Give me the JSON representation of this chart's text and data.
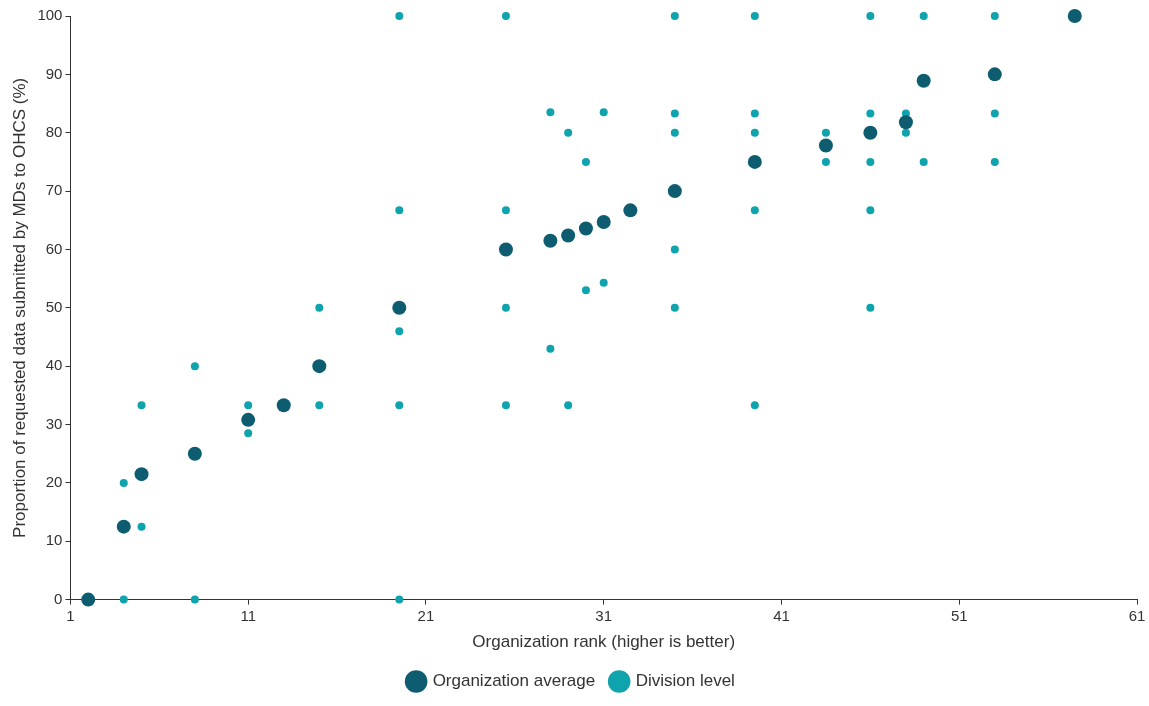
{
  "chart_data": {
    "type": "scatter",
    "xlabel": "Organization rank (higher is better)",
    "ylabel": "Proportion of requested data submitted by MDs to OHCS (%)",
    "xlim": [
      1,
      61
    ],
    "xticks": [
      1,
      11,
      21,
      31,
      41,
      51,
      61
    ],
    "ylim": [
      0,
      100
    ],
    "yticks": [
      0,
      10,
      20,
      30,
      40,
      50,
      60,
      70,
      80,
      90,
      100
    ],
    "grid": false,
    "legend": "bottom",
    "marker": "circle",
    "series": [
      {
        "name": "Organization average",
        "color": "#0d5c70",
        "x": [
          2,
          4,
          5,
          8,
          11,
          13,
          15,
          19.5,
          25.5,
          28,
          29,
          30,
          31,
          32.5,
          35,
          39.5,
          43.5,
          46,
          48,
          49,
          53,
          57.5
        ],
        "values": [
          0,
          12.5,
          21.5,
          25,
          30.8,
          33.3,
          40,
          50,
          60,
          61.5,
          62.4,
          63.6,
          64.7,
          66.7,
          70,
          75,
          77.8,
          80,
          81.8,
          88.9,
          90,
          100
        ]
      },
      {
        "name": "Division level",
        "color": "#0fa3ae",
        "x": [
          4,
          4,
          5,
          5,
          8,
          8,
          11,
          11,
          15,
          15,
          19.5,
          19.5,
          19.5,
          19.5,
          19.5,
          25.5,
          25.5,
          25.5,
          25.5,
          28,
          28,
          29,
          29,
          30,
          30,
          31,
          31,
          35,
          35,
          35,
          35,
          35,
          39.5,
          39.5,
          39.5,
          39.5,
          39.5,
          43.5,
          43.5,
          46,
          46,
          46,
          46,
          46,
          48,
          48,
          49,
          49,
          53,
          53,
          53
        ],
        "values": [
          20,
          0,
          33.3,
          12.5,
          40,
          0,
          33.3,
          28.5,
          50,
          33.3,
          100,
          66.7,
          46,
          33.3,
          0,
          100,
          66.7,
          50,
          33.3,
          83.5,
          43,
          80,
          33.3,
          75,
          53,
          83.5,
          54.3,
          100,
          83.3,
          80,
          60,
          50,
          100,
          83.3,
          80,
          66.7,
          33.3,
          80,
          75,
          100,
          83.3,
          75,
          66.7,
          50,
          83.3,
          80,
          100,
          75,
          100,
          83.3,
          75
        ]
      }
    ]
  }
}
